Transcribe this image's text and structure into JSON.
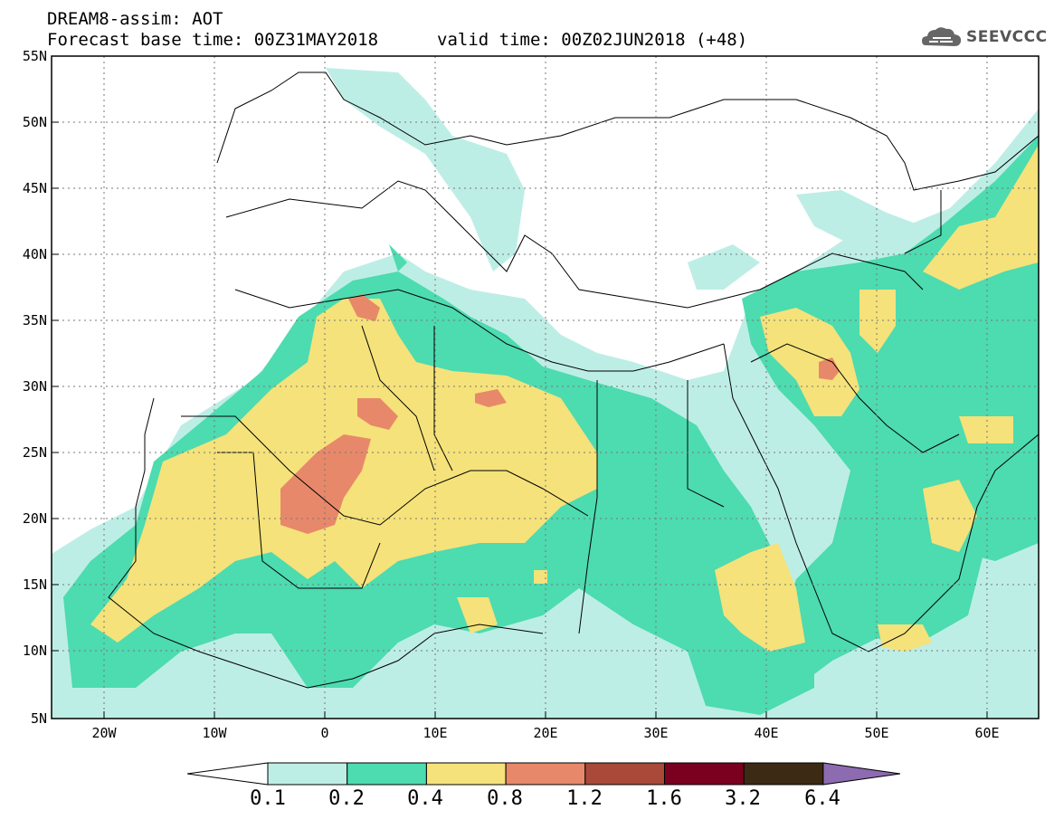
{
  "header": {
    "title_line1": "DREAM8-assim: AOT",
    "title_line2": "Forecast base time: 00Z31MAY2018",
    "valid_time": "valid time: 00Z02JUN2018 (+48)"
  },
  "logo": {
    "text": "SEEVCCC",
    "icon": "cloud-icon"
  },
  "map": {
    "lat_ticks": [
      "55N",
      "50N",
      "45N",
      "40N",
      "35N",
      "30N",
      "25N",
      "20N",
      "15N",
      "10N",
      "5N"
    ],
    "lon_ticks": [
      "20W",
      "10W",
      "0",
      "10E",
      "20E",
      "30E",
      "40E",
      "50E",
      "60E"
    ]
  },
  "colorbar": {
    "labels": [
      "0.1",
      "0.2",
      "0.4",
      "0.8",
      "1.2",
      "1.6",
      "3.2",
      "6.4"
    ],
    "colors": [
      "#ffffff",
      "#bdeee6",
      "#4ddbb0",
      "#f5e27a",
      "#e8886a",
      "#a9493a",
      "#7a0020",
      "#3d2a14",
      "#8c6bb1"
    ]
  }
}
